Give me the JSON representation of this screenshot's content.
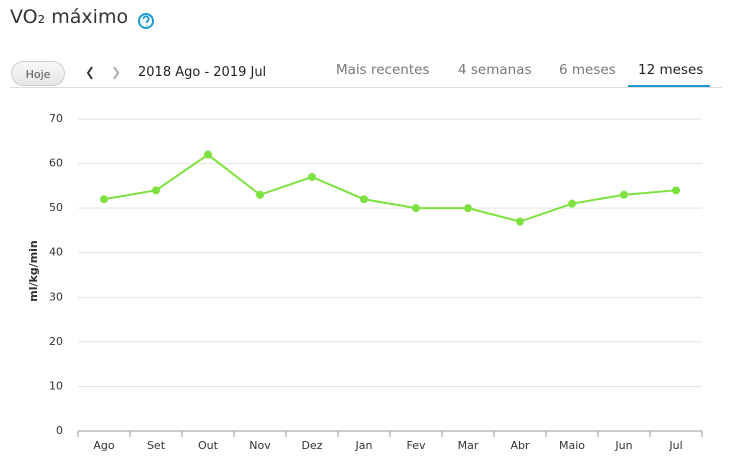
{
  "header": {
    "title": "VO₂ máximo",
    "today_button": "Hoje",
    "date_range": "2018 Ago - 2019 Jul",
    "tabs": [
      "Mais recentes",
      "4 semanas",
      "6 meses",
      "12 meses"
    ],
    "selected_tab": 3
  },
  "chart_data": {
    "type": "line",
    "y_label": "ml/kg/min",
    "categories": [
      "Ago",
      "Set",
      "Out",
      "Nov",
      "Dez",
      "Jan",
      "Fev",
      "Mar",
      "Abr",
      "Maio",
      "Jun",
      "Jul"
    ],
    "values": [
      52,
      54,
      62,
      53,
      57,
      52,
      50,
      50,
      47,
      51,
      53,
      54
    ],
    "color": "#7de13f",
    "ylim": [
      0,
      70
    ],
    "yticks": [
      0,
      10,
      20,
      30,
      40,
      50,
      60,
      70
    ],
    "grid": true
  }
}
